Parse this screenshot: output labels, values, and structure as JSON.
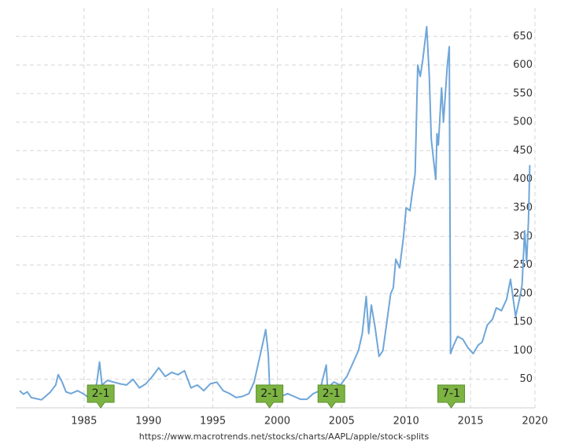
{
  "chart_data": {
    "type": "line",
    "source": "https://www.macrotrends.net/stocks/charts/AAPL/apple/stock-splits",
    "x": [
      1980.0,
      1980.3,
      1980.6,
      1980.9,
      1981.3,
      1981.7,
      1982.0,
      1982.4,
      1982.8,
      1983.0,
      1983.3,
      1983.6,
      1984.0,
      1984.5,
      1985.0,
      1985.4,
      1985.8,
      1986.0,
      1986.2,
      1986.4,
      1986.8,
      1987.3,
      1987.8,
      1988.3,
      1988.8,
      1989.3,
      1989.8,
      1990.3,
      1990.8,
      1991.3,
      1991.8,
      1992.3,
      1992.8,
      1993.3,
      1993.8,
      1994.3,
      1994.8,
      1995.3,
      1995.8,
      1996.3,
      1996.8,
      1997.3,
      1997.8,
      1998.2,
      1998.6,
      1998.9,
      1999.1,
      1999.3,
      1999.4,
      1999.8,
      2000.3,
      2000.8,
      2001.3,
      2001.8,
      2002.3,
      2002.8,
      2003.3,
      2003.8,
      2003.9,
      2004.4,
      2004.9,
      2005.4,
      2005.9,
      2006.3,
      2006.6,
      2006.9,
      2007.1,
      2007.3,
      2007.6,
      2007.9,
      2008.2,
      2008.5,
      2008.8,
      2009.0,
      2009.2,
      2009.5,
      2009.8,
      2010.0,
      2010.3,
      2010.5,
      2010.7,
      2010.9,
      2011.1,
      2011.3,
      2011.6,
      2011.8,
      2011.95,
      2012.1,
      2012.3,
      2012.4,
      2012.5,
      2012.75,
      2012.9,
      2013.2,
      2013.35,
      2013.45,
      2013.7,
      2014.0,
      2014.4,
      2014.8,
      2015.2,
      2015.6,
      2015.9,
      2016.3,
      2016.7,
      2017.0,
      2017.4,
      2017.8,
      2018.1,
      2018.5,
      2018.8,
      2019.0,
      2019.2,
      2019.35,
      2019.5,
      2019.6
    ],
    "series": [
      {
        "color": "#6fa6d9",
        "values": [
          30,
          24,
          28,
          18,
          16,
          14,
          20,
          28,
          40,
          58,
          45,
          28,
          25,
          30,
          24,
          17,
          25,
          45,
          80,
          40,
          48,
          45,
          42,
          40,
          50,
          35,
          42,
          55,
          70,
          55,
          62,
          58,
          65,
          35,
          40,
          30,
          42,
          45,
          30,
          25,
          18,
          20,
          25,
          45,
          85,
          115,
          137,
          95,
          40,
          25,
          20,
          25,
          20,
          15,
          15,
          25,
          30,
          75,
          35,
          45,
          40,
          55,
          80,
          100,
          130,
          195,
          130,
          180,
          140,
          90,
          100,
          150,
          200,
          210,
          260,
          245,
          300,
          350,
          345,
          380,
          410,
          600,
          580,
          610,
          667,
          580,
          470,
          440,
          400,
          480,
          460,
          560,
          500,
          600,
          632,
          95,
          110,
          125,
          120,
          105,
          95,
          110,
          115,
          145,
          155,
          175,
          170,
          190,
          225,
          160,
          190,
          215,
          310,
          255,
          330,
          425
        ]
      }
    ],
    "annotations": [
      {
        "x": 1986.3,
        "label": "2-1"
      },
      {
        "x": 1999.4,
        "label": "2-1"
      },
      {
        "x": 2004.2,
        "label": "2-1"
      },
      {
        "x": 2013.5,
        "label": "7-1"
      }
    ],
    "xlim": [
      1979.7,
      2020.0
    ],
    "ylim": [
      0,
      700
    ],
    "xticks": [
      1985,
      1990,
      1995,
      2000,
      2005,
      2010,
      2015,
      2020
    ],
    "yticks": [
      50,
      100,
      150,
      200,
      250,
      300,
      350,
      400,
      450,
      500,
      550,
      600,
      650
    ],
    "grid": true
  }
}
